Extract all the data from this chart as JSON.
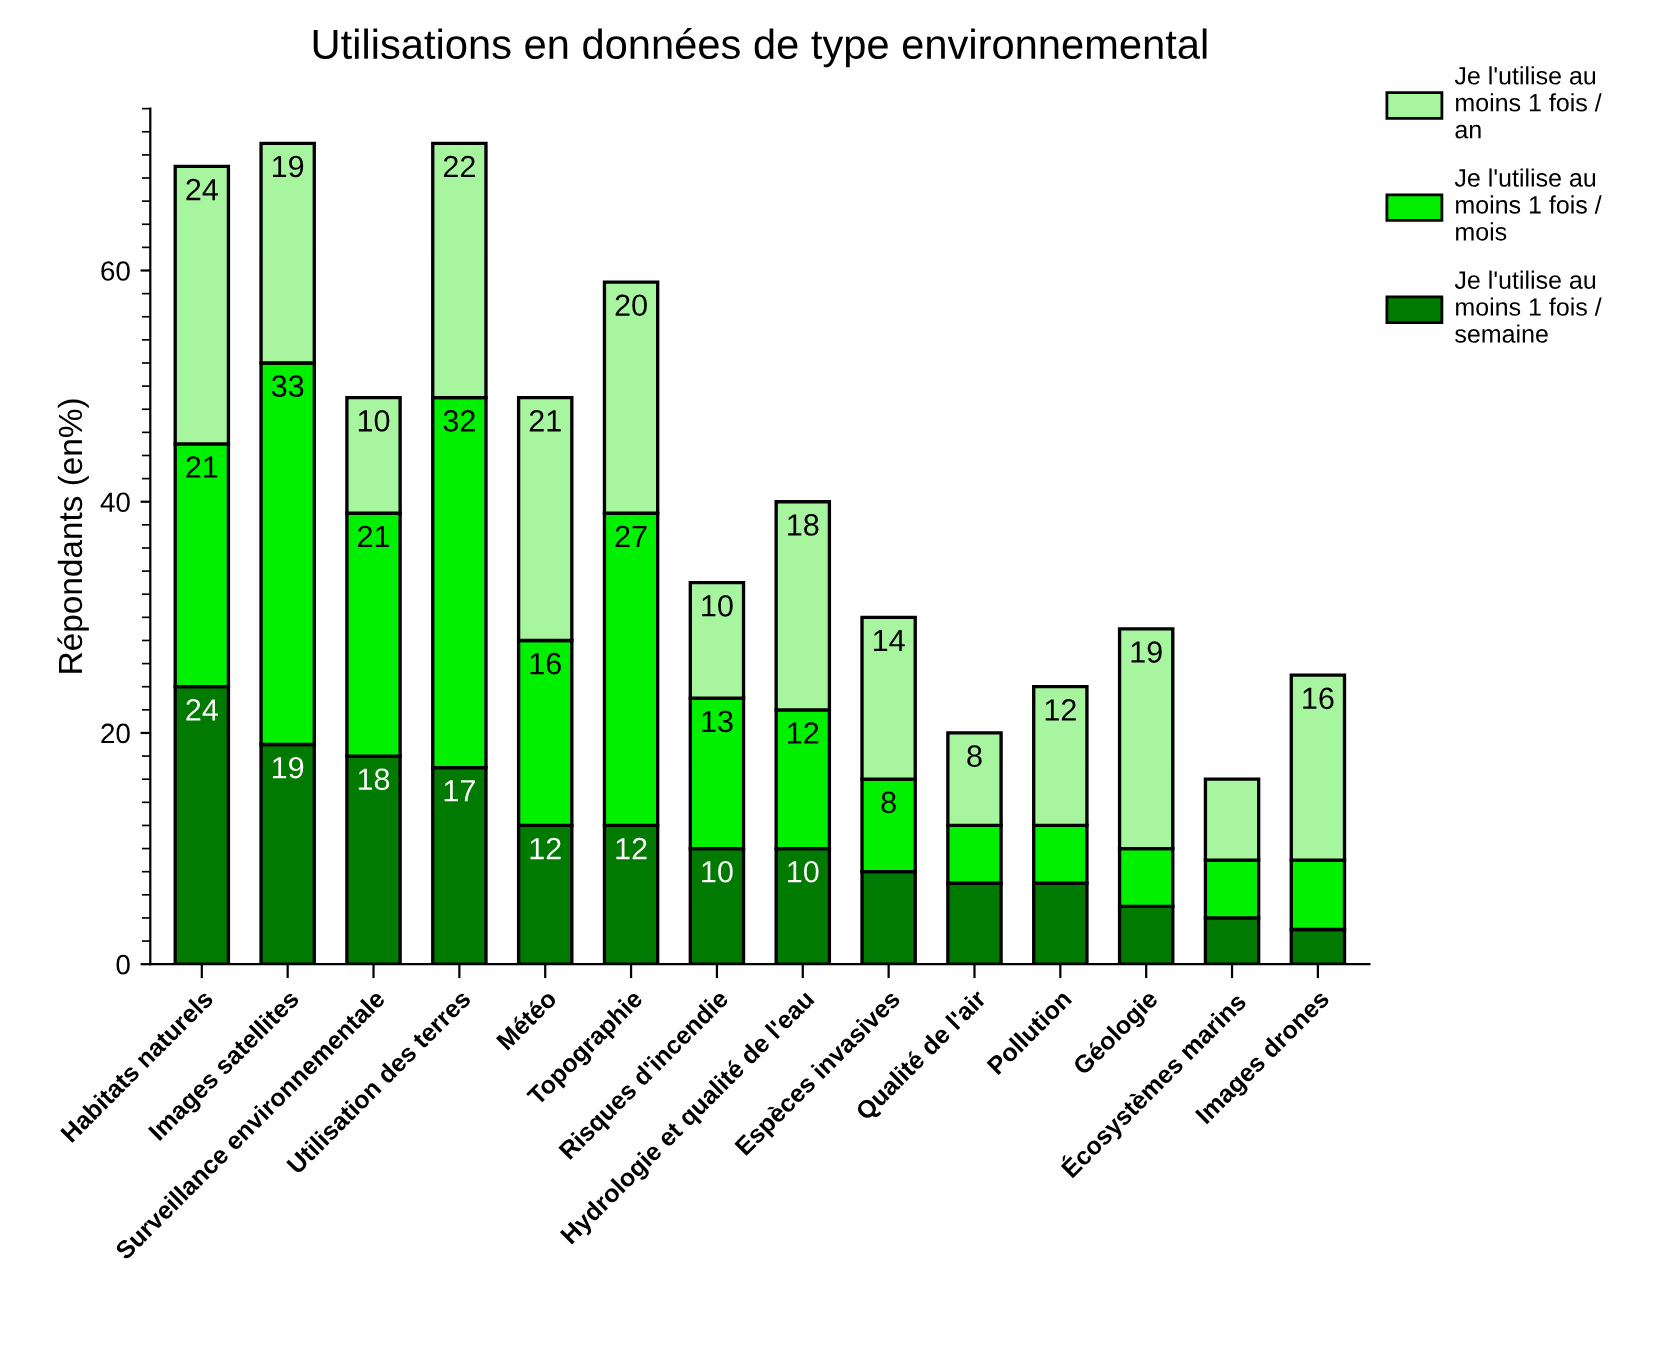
{
  "chart_data": {
    "type": "bar",
    "title": "Utilisations en données de type environnemental",
    "ylabel": "Répondants (en%)",
    "categories": [
      "Habitats naturels",
      "Images satellites",
      "Surveillance environnementale",
      "Utilisation des terres",
      "Météo",
      "Topographie",
      "Risques d'incendie",
      "Hydrologie et qualité de l'eau",
      "Espèces invasives",
      "Qualité de l'air",
      "Pollution",
      "Géologie",
      "Écosystèmes marins",
      "Images drones"
    ],
    "stacked": true,
    "ylim": [
      0,
      74
    ],
    "yticks": [
      0,
      20,
      40,
      60
    ],
    "grid": false,
    "legend": "top right",
    "series": [
      {
        "name": "Je l'utilise au\nmoins 1 fois /\nsemaine",
        "color": "#007a00",
        "values": [
          24,
          19,
          18,
          17,
          12,
          12,
          10,
          10,
          8,
          7,
          7,
          5,
          4,
          3
        ],
        "value_labels": [
          "24",
          "19",
          "18",
          "17",
          "12",
          "12",
          "10",
          "10",
          null,
          null,
          null,
          null,
          null,
          null
        ]
      },
      {
        "name": "Je l'utilise au\nmoins 1 fois /\nmois",
        "color": "#00f000",
        "values": [
          21,
          33,
          21,
          32,
          16,
          27,
          13,
          12,
          8,
          5,
          5,
          5,
          5,
          6
        ],
        "value_labels": [
          "21",
          "33",
          "21",
          "32",
          "16",
          "27",
          "13",
          "12",
          "8",
          null,
          null,
          null,
          null,
          null
        ]
      },
      {
        "name": "Je l'utilise au\nmoins 1 fois /\nan",
        "color": "#a8f5a0",
        "values": [
          24,
          19,
          10,
          22,
          21,
          20,
          10,
          18,
          14,
          8,
          12,
          19,
          7,
          16
        ],
        "value_labels": [
          "24",
          "19",
          "10",
          "22",
          "21",
          "20",
          "10",
          "18",
          "14",
          "8",
          "12",
          "19",
          null,
          "16"
        ]
      }
    ]
  }
}
